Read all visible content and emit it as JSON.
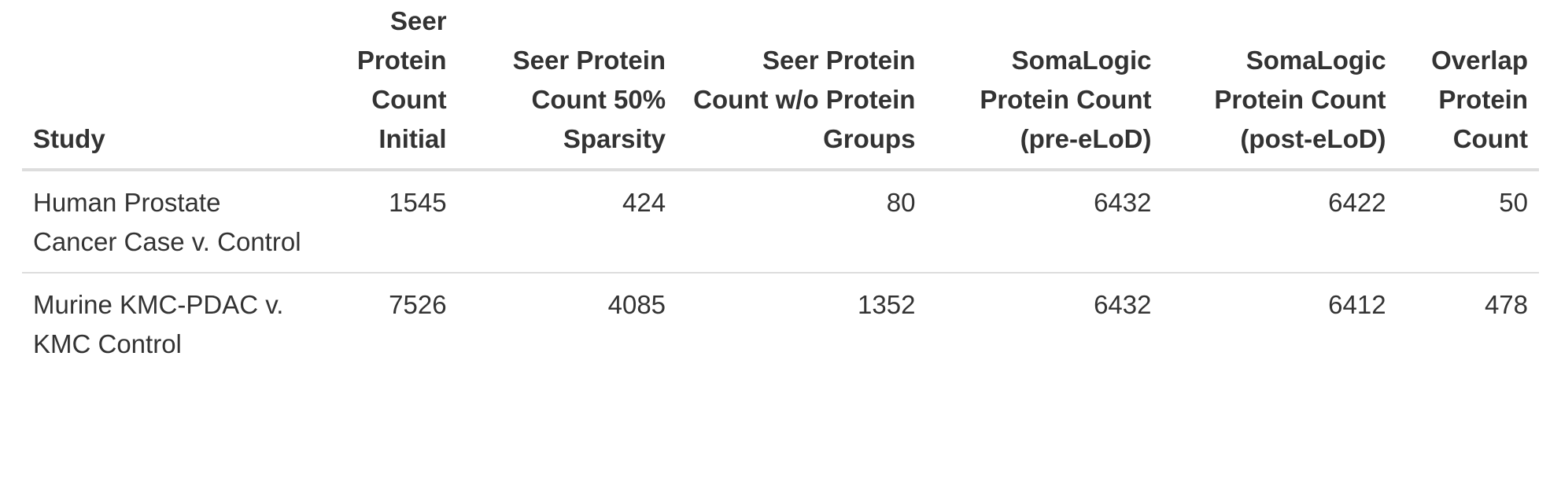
{
  "table": {
    "headers": [
      "Study",
      "Seer Protein Count Initial",
      "Seer Protein Count 50% Sparsity",
      "Seer Protein Count w/o Protein Groups",
      "SomaLogic Protein Count (pre-eLoD)",
      "SomaLogic Protein Count (post-eLoD)",
      "Overlap Protein Count"
    ],
    "rows": [
      [
        "Human Prostate Cancer Case v. Control",
        "1545",
        "424",
        "80",
        "6432",
        "6422",
        "50"
      ],
      [
        "Murine KMC-PDAC v. KMC Control",
        "7526",
        "4085",
        "1352",
        "6432",
        "6412",
        "478"
      ]
    ]
  }
}
